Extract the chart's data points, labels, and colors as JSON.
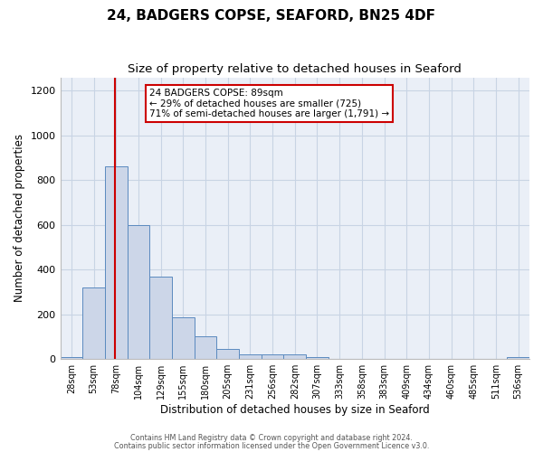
{
  "title": "24, BADGERS COPSE, SEAFORD, BN25 4DF",
  "subtitle": "Size of property relative to detached houses in Seaford",
  "xlabel": "Distribution of detached houses by size in Seaford",
  "ylabel": "Number of detached properties",
  "bar_labels": [
    "28sqm",
    "53sqm",
    "78sqm",
    "104sqm",
    "129sqm",
    "155sqm",
    "180sqm",
    "205sqm",
    "231sqm",
    "256sqm",
    "282sqm",
    "307sqm",
    "333sqm",
    "358sqm",
    "383sqm",
    "409sqm",
    "434sqm",
    "460sqm",
    "485sqm",
    "511sqm",
    "536sqm"
  ],
  "bar_values": [
    10,
    320,
    860,
    600,
    370,
    185,
    103,
    47,
    20,
    20,
    20,
    8,
    0,
    0,
    0,
    0,
    0,
    0,
    0,
    0,
    8
  ],
  "bar_color": "#ccd6e8",
  "bar_edge_color": "#5b8abf",
  "grid_color": "#c8d4e4",
  "background_color": "#eaeff7",
  "vline_color": "#cc0000",
  "vline_bar_index": 2,
  "annotation_text": "24 BADGERS COPSE: 89sqm\n← 29% of detached houses are smaller (725)\n71% of semi-detached houses are larger (1,791) →",
  "annotation_box_edgecolor": "#cc0000",
  "ylim": [
    0,
    1260
  ],
  "yticks": [
    0,
    200,
    400,
    600,
    800,
    1000,
    1200
  ],
  "footer_line1": "Contains HM Land Registry data © Crown copyright and database right 2024.",
  "footer_line2": "Contains public sector information licensed under the Open Government Licence v3.0.",
  "title_fontsize": 11,
  "subtitle_fontsize": 9.5
}
